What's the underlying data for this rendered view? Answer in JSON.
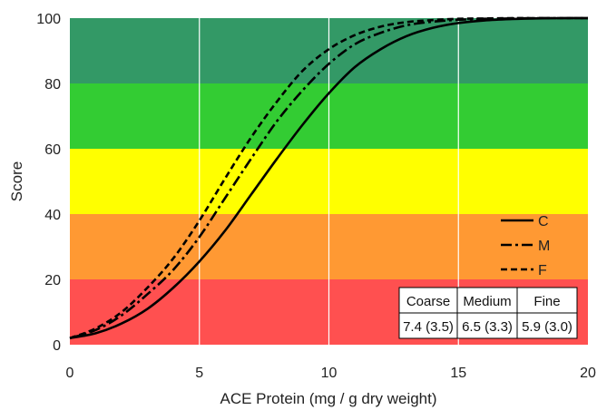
{
  "chart_data": {
    "type": "line",
    "title": "",
    "xlabel": "ACE Protein (mg / g dry weight)",
    "ylabel": "Score",
    "xlim": [
      0,
      20
    ],
    "ylim": [
      0,
      100
    ],
    "x_ticks": [
      "0",
      "5",
      "10",
      "15",
      "20"
    ],
    "y_ticks": [
      "0",
      "20",
      "40",
      "60",
      "80",
      "100"
    ],
    "grid": "vertical",
    "bands": [
      {
        "from": 0,
        "to": 20,
        "color": "#FF5050"
      },
      {
        "from": 20,
        "to": 40,
        "color": "#FF9933"
      },
      {
        "from": 40,
        "to": 60,
        "color": "#FFFF00"
      },
      {
        "from": 60,
        "to": 80,
        "color": "#33CC33"
      },
      {
        "from": 80,
        "to": 100,
        "color": "#339966"
      }
    ],
    "series": [
      {
        "name": "C",
        "style": "solid",
        "x": [
          0,
          1,
          2,
          3,
          4,
          5,
          6,
          7,
          8,
          9,
          10,
          11,
          12,
          13,
          14,
          15,
          16,
          17,
          18,
          19,
          20
        ],
        "y": [
          2,
          3.5,
          6.5,
          11,
          17.5,
          25.5,
          35,
          46,
          57,
          67.5,
          77,
          85,
          90.5,
          94.5,
          97,
          98.5,
          99.3,
          99.7,
          99.9,
          100,
          100
        ]
      },
      {
        "name": "M",
        "style": "dashdot",
        "x": [
          0,
          1,
          2,
          3,
          4,
          5,
          6,
          7,
          8,
          9,
          10,
          11,
          12,
          13,
          14,
          15,
          16,
          17,
          18,
          19,
          20
        ],
        "y": [
          2,
          4.5,
          9,
          15.5,
          23,
          33,
          45,
          57,
          68.5,
          78,
          86,
          92,
          95.5,
          97.8,
          98.9,
          99.5,
          99.8,
          99.9,
          100,
          100,
          100
        ]
      },
      {
        "name": "F",
        "style": "dashed",
        "x": [
          0,
          1,
          2,
          3,
          4,
          5,
          6,
          7,
          8,
          9,
          10,
          11,
          12,
          13,
          14,
          15,
          16,
          17,
          18,
          19,
          20
        ],
        "y": [
          2,
          5,
          10,
          17.5,
          26.5,
          38,
          51,
          63.5,
          74.5,
          84,
          90.5,
          94.8,
          97.4,
          98.8,
          99.4,
          99.8,
          99.9,
          100,
          100,
          100,
          100
        ]
      }
    ],
    "legend_position": "lower-right",
    "table": {
      "headers": [
        "Coarse",
        "Medium",
        "Fine"
      ],
      "values": [
        "7.4 (3.5)",
        "6.5 (3.3)",
        "5.9 (3.0)"
      ]
    }
  }
}
